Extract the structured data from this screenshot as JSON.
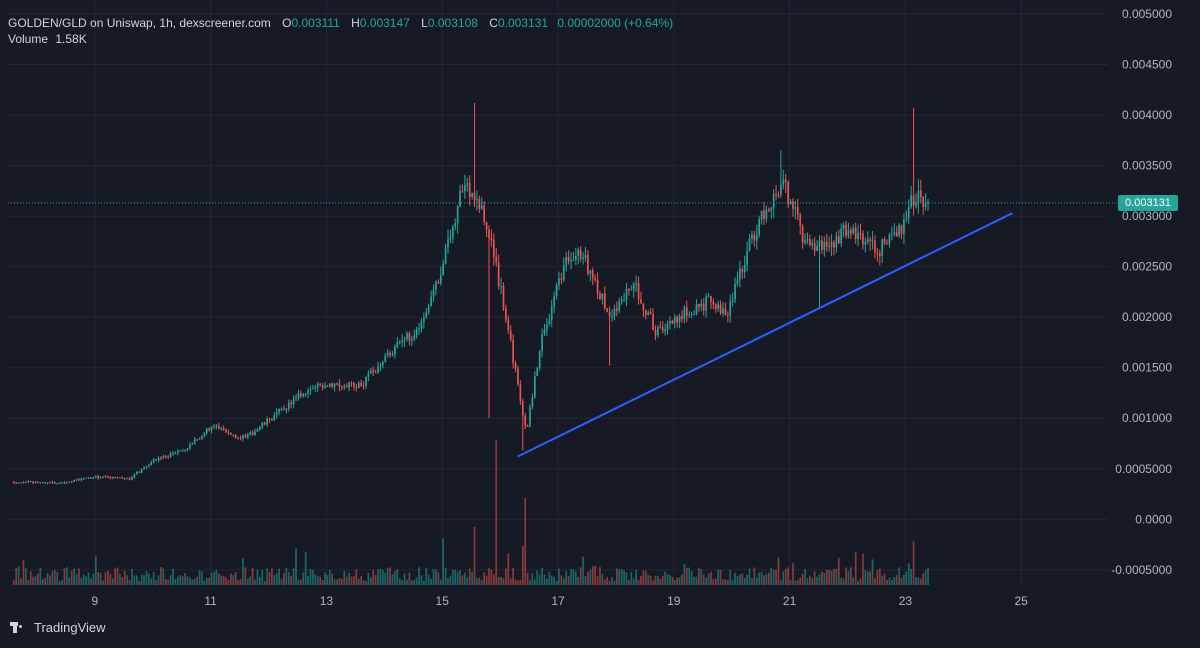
{
  "header": {
    "pair": "GOLDEN/GLD on Uniswap, 1h, dexscreener.com",
    "open_label": "O",
    "open": "0.003111",
    "high_label": "H",
    "high": "0.003147",
    "low_label": "L",
    "low": "0.003108",
    "close_label": "C",
    "close": "0.003131",
    "change": "0.00002000 (+0.64%)",
    "volume_label": "Volume",
    "volume": "1.58K"
  },
  "price_tag": "0.003131",
  "branding": "TradingView",
  "colors": {
    "background": "#161a25",
    "up": "#26a69a",
    "down": "#ef5350",
    "trendline": "#2962ff",
    "grid": "#242733",
    "axis_text": "#b2b5be"
  },
  "chart_data": {
    "type": "candlestick",
    "y_axis_ticks": [
      "0.005000",
      "0.004500",
      "0.004000",
      "0.003500",
      "0.003000",
      "0.002500",
      "0.002000",
      "0.001500",
      "0.001000",
      "0.0005000",
      "0.0000",
      "-0.0005000"
    ],
    "x_axis_ticks": [
      "9",
      "11",
      "13",
      "15",
      "17",
      "19",
      "21",
      "23",
      "25"
    ],
    "ylim": [
      -0.00065,
      0.005
    ],
    "x_range_days": [
      7.5,
      26.5
    ],
    "last_price": 0.003131,
    "price_path": [
      {
        "d": 7.6,
        "p": 0.00037
      },
      {
        "d": 8.4,
        "p": 0.00036
      },
      {
        "d": 9.0,
        "p": 0.00042
      },
      {
        "d": 9.6,
        "p": 0.0004
      },
      {
        "d": 10.0,
        "p": 0.00058
      },
      {
        "d": 10.6,
        "p": 0.0007
      },
      {
        "d": 11.0,
        "p": 0.00092
      },
      {
        "d": 11.6,
        "p": 0.0008
      },
      {
        "d": 12.0,
        "p": 0.00098
      },
      {
        "d": 12.6,
        "p": 0.00125
      },
      {
        "d": 13.0,
        "p": 0.00135
      },
      {
        "d": 13.6,
        "p": 0.00132
      },
      {
        "d": 14.0,
        "p": 0.0016
      },
      {
        "d": 14.6,
        "p": 0.0019
      },
      {
        "d": 15.0,
        "p": 0.0025
      },
      {
        "d": 15.35,
        "p": 0.0033
      },
      {
        "d": 15.6,
        "p": 0.0032
      },
      {
        "d": 15.9,
        "p": 0.0026
      },
      {
        "d": 16.1,
        "p": 0.002
      },
      {
        "d": 16.45,
        "p": 0.00085
      },
      {
        "d": 16.7,
        "p": 0.00175
      },
      {
        "d": 17.1,
        "p": 0.0025
      },
      {
        "d": 17.4,
        "p": 0.00265
      },
      {
        "d": 17.9,
        "p": 0.002
      },
      {
        "d": 18.3,
        "p": 0.00235
      },
      {
        "d": 18.7,
        "p": 0.00185
      },
      {
        "d": 19.2,
        "p": 0.00205
      },
      {
        "d": 19.6,
        "p": 0.00215
      },
      {
        "d": 19.9,
        "p": 0.002
      },
      {
        "d": 20.2,
        "p": 0.00255
      },
      {
        "d": 20.6,
        "p": 0.0031
      },
      {
        "d": 20.9,
        "p": 0.0033
      },
      {
        "d": 21.3,
        "p": 0.0027
      },
      {
        "d": 21.7,
        "p": 0.0027
      },
      {
        "d": 22.0,
        "p": 0.0029
      },
      {
        "d": 22.5,
        "p": 0.00265
      },
      {
        "d": 22.9,
        "p": 0.00285
      },
      {
        "d": 23.1,
        "p": 0.0032
      },
      {
        "d": 23.4,
        "p": 0.00313
      }
    ],
    "spikes": [
      {
        "d": 15.55,
        "high": 0.00412
      },
      {
        "d": 15.8,
        "low": 0.001
      },
      {
        "d": 16.4,
        "low": 0.00068
      },
      {
        "d": 17.9,
        "low": 0.00152
      },
      {
        "d": 20.85,
        "high": 0.00365
      },
      {
        "d": 21.5,
        "low": 0.0021
      },
      {
        "d": 23.15,
        "high": 0.00407
      }
    ],
    "volume_spikes": [
      {
        "d": 15.92,
        "v": 1.0
      },
      {
        "d": 16.45,
        "v": 0.6
      },
      {
        "d": 15.55,
        "v": 0.4
      },
      {
        "d": 15.0,
        "v": 0.32
      },
      {
        "d": 23.15,
        "v": 0.3
      }
    ],
    "trendline": {
      "start": {
        "d": 16.3,
        "p": 0.00062
      },
      "end": {
        "d": 24.85,
        "p": 0.00303
      }
    }
  }
}
